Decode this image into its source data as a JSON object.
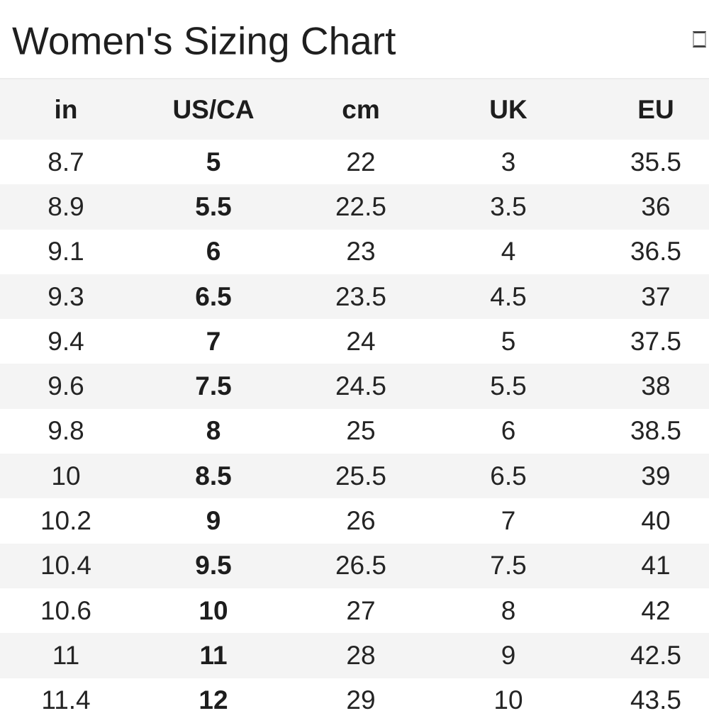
{
  "page": {
    "title": "Women's Sizing Chart"
  },
  "header_icon": {
    "glyph": "missing-glyph-box"
  },
  "chart_data": {
    "type": "table",
    "title": "Women's Sizing Chart",
    "columns": [
      "in",
      "US/CA",
      "cm",
      "UK",
      "EU"
    ],
    "bold_column": "US/CA",
    "rows": [
      [
        "8.7",
        "5",
        "22",
        "3",
        "35.5"
      ],
      [
        "8.9",
        "5.5",
        "22.5",
        "3.5",
        "36"
      ],
      [
        "9.1",
        "6",
        "23",
        "4",
        "36.5"
      ],
      [
        "9.3",
        "6.5",
        "23.5",
        "4.5",
        "37"
      ],
      [
        "9.4",
        "7",
        "24",
        "5",
        "37.5"
      ],
      [
        "9.6",
        "7.5",
        "24.5",
        "5.5",
        "38"
      ],
      [
        "9.8",
        "8",
        "25",
        "6",
        "38.5"
      ],
      [
        "10",
        "8.5",
        "25.5",
        "6.5",
        "39"
      ],
      [
        "10.2",
        "9",
        "26",
        "7",
        "40"
      ],
      [
        "10.4",
        "9.5",
        "26.5",
        "7.5",
        "41"
      ],
      [
        "10.6",
        "10",
        "27",
        "8",
        "42"
      ],
      [
        "11",
        "11",
        "28",
        "9",
        "42.5"
      ],
      [
        "11.4",
        "12",
        "29",
        "10",
        "43.5"
      ]
    ],
    "layout_hints": {
      "row_striping": {
        "odd": "#ffffff",
        "even": "#f4f4f4"
      },
      "header_background": "#f4f4f4",
      "grid": "off"
    }
  },
  "colors": {
    "stripe_gray": "#f4f4f4",
    "header_border": "#ececec",
    "text": "#242424",
    "title_text": "#1f1f1f"
  }
}
